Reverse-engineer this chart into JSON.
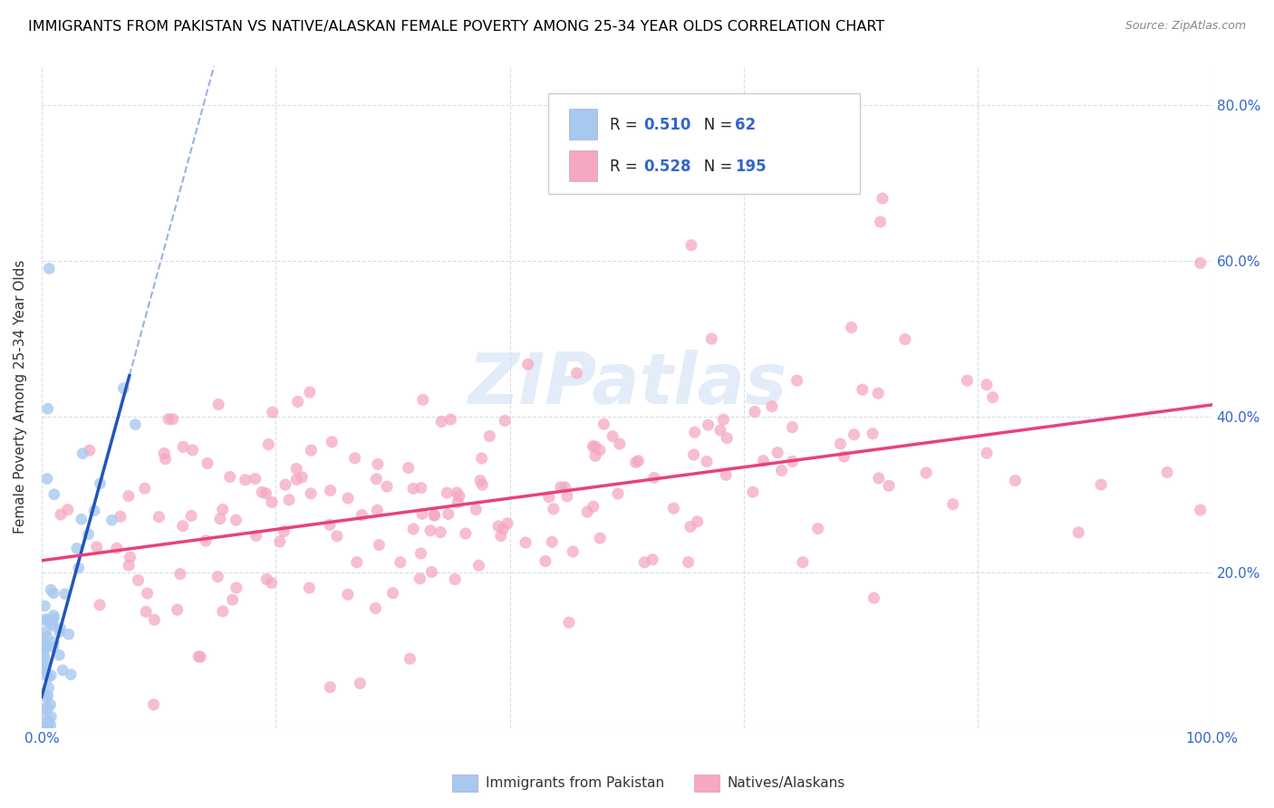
{
  "title": "IMMIGRANTS FROM PAKISTAN VS NATIVE/ALASKAN FEMALE POVERTY AMONG 25-34 YEAR OLDS CORRELATION CHART",
  "source": "Source: ZipAtlas.com",
  "ylabel": "Female Poverty Among 25-34 Year Olds",
  "xlim": [
    0,
    1.0
  ],
  "ylim": [
    0,
    0.85
  ],
  "pakistan_R": 0.51,
  "pakistan_N": 62,
  "native_R": 0.528,
  "native_N": 195,
  "pakistan_color": "#a8c8f0",
  "native_color": "#f5a8c0",
  "pakistan_trend_color": "#2255bb",
  "native_trend_color": "#e84080",
  "watermark": "ZIPatlas",
  "legend_label_pakistan": "Immigrants from Pakistan",
  "legend_label_native": "Natives/Alaskans",
  "tick_color": "#3366cc",
  "grid_color": "#c8d8e8",
  "background_color": "#ffffff"
}
